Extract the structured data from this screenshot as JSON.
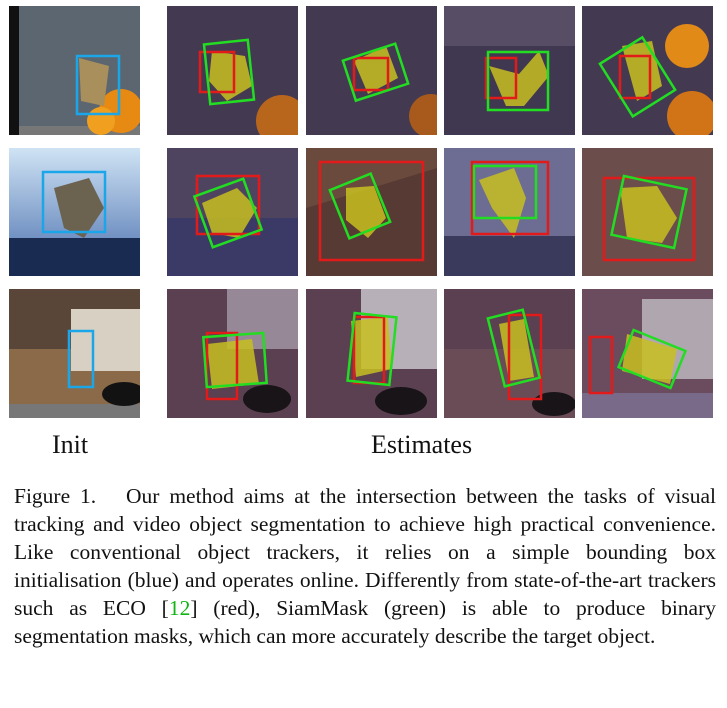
{
  "labels": {
    "init": "Init",
    "estimates": "Estimates"
  },
  "colors": {
    "init_box": "#1aa6e8",
    "eco_box": "#e31a1a",
    "siammask_box": "#22dd22",
    "mask_fill": "#c8c020"
  },
  "rows": [
    {
      "subject": "butterfly",
      "tiles": [
        "init",
        "estimate",
        "estimate",
        "estimate",
        "estimate"
      ]
    },
    {
      "subject": "motocross-bike",
      "tiles": [
        "init",
        "estimate",
        "estimate",
        "estimate",
        "estimate"
      ]
    },
    {
      "subject": "cat",
      "tiles": [
        "init",
        "estimate",
        "estimate",
        "estimate",
        "estimate"
      ]
    }
  ],
  "caption": {
    "prefix": "Figure 1.",
    "part1": "Our method aims at the intersection between the tasks of visual tracking and video object segmentation to achieve high practical convenience. Like conventional object trackers, it relies on a simple bounding box initialisation (blue) and operates online. Differently from state-of-the-art trackers such as ECO [",
    "citation": "12",
    "part2": "] (red), SiamMask (green) is able to produce binary segmentation masks, which can more accurately describe the target object."
  }
}
